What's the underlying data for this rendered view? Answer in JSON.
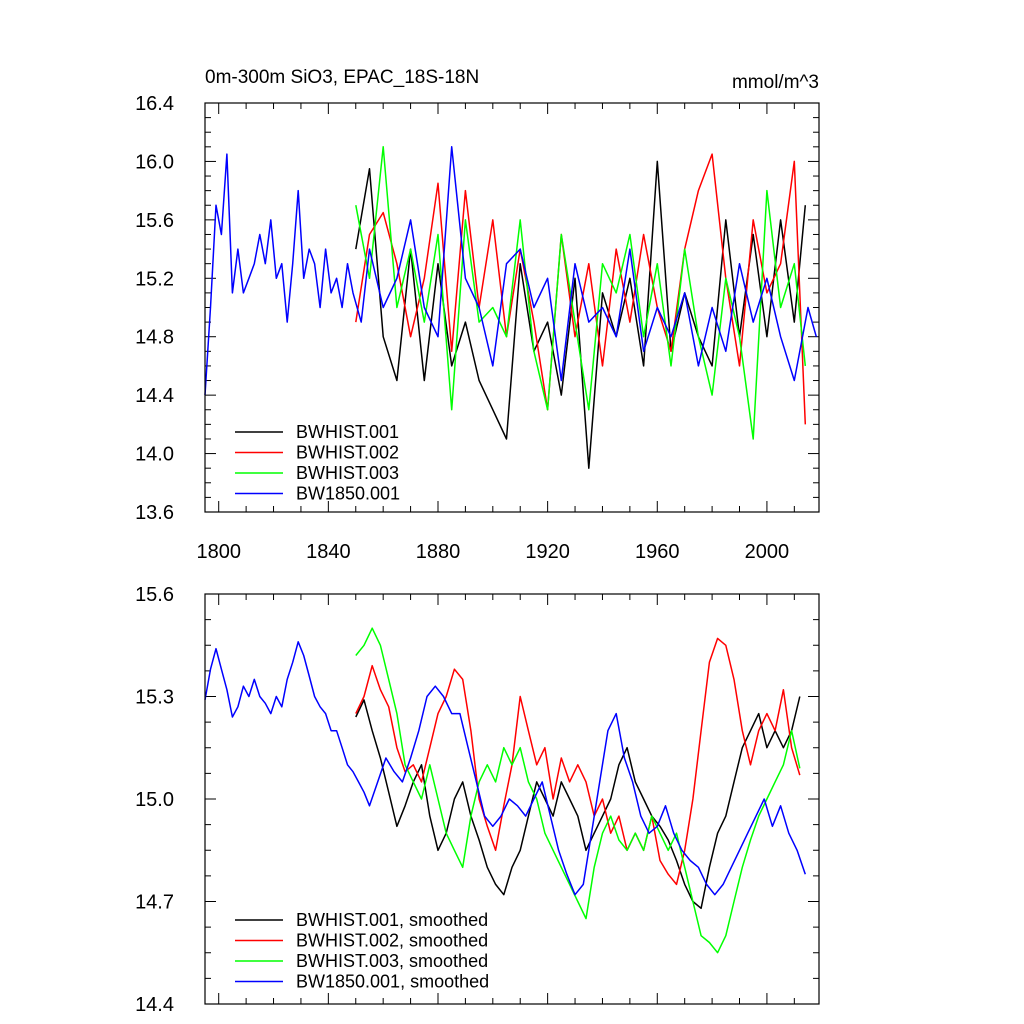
{
  "chart_data": [
    {
      "type": "line",
      "title_left": "0m-300m SiO3, EPAC_18S-18N",
      "title_right": "mmol/m^3",
      "xlabel": "",
      "ylabel": "",
      "xlim": [
        1795,
        2019
      ],
      "ylim": [
        13.6,
        16.4
      ],
      "yticks": [
        13.6,
        14.0,
        14.4,
        14.8,
        15.2,
        15.6,
        16.0,
        16.4
      ],
      "ytick_labels": [
        "13.6",
        "14.0",
        "14.4",
        "14.8",
        "15.2",
        "15.6",
        "16.0",
        "16.4"
      ],
      "xticks": [
        1800,
        1840,
        1880,
        1920,
        1960,
        2000
      ],
      "xtick_labels": [
        "1800",
        "1840",
        "1880",
        "1920",
        "1960",
        "2000"
      ],
      "legend_position": "bottom-left",
      "series": [
        {
          "name": "BWHIST.001",
          "color": "#000000",
          "x": [
            1850,
            1855,
            1860,
            1865,
            1870,
            1875,
            1880,
            1885,
            1890,
            1895,
            1900,
            1905,
            1910,
            1915,
            1920,
            1925,
            1930,
            1935,
            1940,
            1945,
            1950,
            1955,
            1960,
            1965,
            1970,
            1975,
            1980,
            1985,
            1990,
            1995,
            2000,
            2005,
            2010,
            2014
          ],
          "values": [
            15.4,
            15.95,
            14.8,
            14.5,
            15.4,
            14.5,
            15.3,
            14.6,
            14.9,
            14.5,
            14.3,
            14.1,
            15.3,
            14.7,
            14.9,
            14.4,
            15.2,
            13.9,
            15.1,
            14.8,
            15.2,
            14.6,
            16.0,
            14.7,
            15.1,
            14.8,
            14.6,
            15.6,
            14.8,
            15.5,
            14.8,
            15.6,
            14.9,
            15.7
          ]
        },
        {
          "name": "BWHIST.002",
          "color": "#ff0000",
          "x": [
            1850,
            1855,
            1860,
            1865,
            1870,
            1875,
            1880,
            1885,
            1890,
            1895,
            1900,
            1905,
            1910,
            1915,
            1920,
            1925,
            1930,
            1935,
            1940,
            1945,
            1950,
            1955,
            1960,
            1965,
            1970,
            1975,
            1980,
            1985,
            1990,
            1995,
            2000,
            2005,
            2010,
            2014
          ],
          "values": [
            14.9,
            15.5,
            15.65,
            15.3,
            14.8,
            15.2,
            15.85,
            14.7,
            15.8,
            15.0,
            15.6,
            14.8,
            15.4,
            14.9,
            14.3,
            15.5,
            14.8,
            15.3,
            14.6,
            15.4,
            14.9,
            15.5,
            15.0,
            14.7,
            15.4,
            15.8,
            16.05,
            15.2,
            14.6,
            15.6,
            15.1,
            15.3,
            16.0,
            14.2
          ]
        },
        {
          "name": "BWHIST.003",
          "color": "#00ff00",
          "x": [
            1850,
            1855,
            1860,
            1865,
            1870,
            1875,
            1880,
            1885,
            1890,
            1895,
            1900,
            1905,
            1910,
            1915,
            1920,
            1925,
            1930,
            1935,
            1940,
            1945,
            1950,
            1955,
            1960,
            1965,
            1970,
            1975,
            1980,
            1985,
            1990,
            1995,
            2000,
            2005,
            2010,
            2014
          ],
          "values": [
            15.7,
            15.2,
            16.1,
            15.0,
            15.4,
            14.9,
            15.5,
            14.3,
            15.6,
            14.9,
            15.0,
            14.8,
            15.6,
            14.7,
            14.3,
            15.5,
            14.9,
            14.3,
            15.3,
            15.1,
            15.5,
            14.8,
            15.3,
            14.6,
            15.4,
            14.8,
            14.4,
            15.2,
            14.8,
            14.1,
            15.8,
            15.0,
            15.3,
            14.6
          ]
        },
        {
          "name": "BW1850.001",
          "color": "#0000ff",
          "x": [
            1795,
            1797,
            1799,
            1801,
            1803,
            1805,
            1807,
            1809,
            1811,
            1813,
            1815,
            1817,
            1819,
            1821,
            1823,
            1825,
            1827,
            1829,
            1831,
            1833,
            1835,
            1837,
            1839,
            1841,
            1843,
            1845,
            1847,
            1849,
            1852,
            1855,
            1860,
            1865,
            1870,
            1875,
            1880,
            1885,
            1890,
            1895,
            1900,
            1905,
            1910,
            1915,
            1920,
            1925,
            1930,
            1935,
            1940,
            1945,
            1950,
            1955,
            1960,
            1965,
            1970,
            1975,
            1980,
            1985,
            1990,
            1995,
            2000,
            2005,
            2010,
            2015,
            2018
          ],
          "values": [
            14.4,
            15.0,
            15.7,
            15.5,
            16.05,
            15.1,
            15.4,
            15.1,
            15.2,
            15.3,
            15.5,
            15.3,
            15.6,
            15.2,
            15.3,
            14.9,
            15.3,
            15.8,
            15.2,
            15.4,
            15.3,
            15.0,
            15.4,
            15.1,
            15.2,
            15.0,
            15.3,
            15.1,
            14.9,
            15.4,
            15.0,
            15.2,
            15.6,
            15.0,
            14.8,
            16.1,
            15.2,
            15.0,
            14.6,
            15.3,
            15.4,
            15.0,
            15.2,
            14.5,
            15.3,
            14.9,
            15.0,
            14.8,
            15.4,
            14.7,
            15.0,
            14.8,
            15.1,
            14.6,
            15.0,
            14.7,
            15.3,
            14.9,
            15.2,
            14.8,
            14.5,
            15.0,
            14.8
          ]
        }
      ]
    },
    {
      "type": "line",
      "xlabel": "",
      "ylabel": "",
      "xlim": [
        1795,
        2019
      ],
      "ylim": [
        14.4,
        15.6
      ],
      "yticks": [
        14.4,
        14.7,
        15.0,
        15.3,
        15.6
      ],
      "ytick_labels": [
        "14.4",
        "14.7",
        "15.0",
        "15.3",
        "15.6"
      ],
      "xticks": [
        1800,
        1840,
        1880,
        1920,
        1960,
        2000
      ],
      "legend_position": "bottom-left",
      "series": [
        {
          "name": "BWHIST.001, smoothed",
          "color": "#000000",
          "x": [
            1850,
            1853,
            1856,
            1859,
            1862,
            1865,
            1868,
            1871,
            1874,
            1877,
            1880,
            1883,
            1886,
            1889,
            1892,
            1895,
            1898,
            1901,
            1904,
            1907,
            1910,
            1913,
            1916,
            1919,
            1922,
            1925,
            1928,
            1931,
            1934,
            1937,
            1940,
            1943,
            1946,
            1949,
            1952,
            1955,
            1958,
            1961,
            1964,
            1967,
            1970,
            1973,
            1976,
            1979,
            1982,
            1985,
            1988,
            1991,
            1994,
            1997,
            2000,
            2003,
            2006,
            2009,
            2012
          ],
          "values": [
            15.24,
            15.29,
            15.2,
            15.12,
            15.02,
            14.92,
            14.98,
            15.05,
            15.1,
            14.95,
            14.85,
            14.9,
            15.0,
            15.05,
            14.95,
            14.88,
            14.8,
            14.75,
            14.72,
            14.8,
            14.85,
            14.95,
            15.05,
            15.0,
            14.95,
            15.05,
            15.0,
            14.95,
            14.85,
            14.9,
            14.95,
            15.0,
            15.1,
            15.15,
            15.05,
            15.0,
            14.95,
            14.92,
            14.88,
            14.82,
            14.75,
            14.7,
            14.68,
            14.8,
            14.9,
            14.95,
            15.05,
            15.15,
            15.2,
            15.25,
            15.15,
            15.2,
            15.15,
            15.2,
            15.3
          ]
        },
        {
          "name": "BWHIST.002, smoothed",
          "color": "#ff0000",
          "x": [
            1850,
            1853,
            1856,
            1859,
            1862,
            1865,
            1868,
            1871,
            1874,
            1877,
            1880,
            1883,
            1886,
            1889,
            1892,
            1895,
            1898,
            1901,
            1904,
            1907,
            1910,
            1913,
            1916,
            1919,
            1922,
            1925,
            1928,
            1931,
            1934,
            1937,
            1940,
            1943,
            1946,
            1949,
            1952,
            1955,
            1958,
            1961,
            1964,
            1967,
            1970,
            1973,
            1976,
            1979,
            1982,
            1985,
            1988,
            1991,
            1994,
            1997,
            2000,
            2003,
            2006,
            2009,
            2012
          ],
          "values": [
            15.25,
            15.3,
            15.39,
            15.32,
            15.27,
            15.15,
            15.08,
            15.1,
            15.05,
            15.15,
            15.25,
            15.3,
            15.38,
            15.35,
            15.2,
            15.0,
            14.92,
            14.85,
            14.98,
            15.1,
            15.3,
            15.2,
            15.1,
            15.15,
            15.0,
            15.12,
            15.05,
            15.1,
            15.05,
            14.95,
            15.0,
            14.9,
            14.95,
            14.85,
            14.9,
            14.85,
            14.95,
            14.82,
            14.78,
            14.75,
            14.85,
            15.0,
            15.2,
            15.4,
            15.47,
            15.45,
            15.35,
            15.2,
            15.1,
            15.2,
            15.25,
            15.2,
            15.32,
            15.15,
            15.07
          ]
        },
        {
          "name": "BWHIST.003, smoothed",
          "color": "#00ff00",
          "x": [
            1850,
            1853,
            1856,
            1859,
            1862,
            1865,
            1868,
            1871,
            1874,
            1877,
            1880,
            1883,
            1886,
            1889,
            1892,
            1895,
            1898,
            1901,
            1904,
            1907,
            1910,
            1913,
            1916,
            1919,
            1922,
            1925,
            1928,
            1931,
            1934,
            1937,
            1940,
            1943,
            1946,
            1949,
            1952,
            1955,
            1958,
            1961,
            1964,
            1967,
            1970,
            1973,
            1976,
            1979,
            1982,
            1985,
            1988,
            1991,
            1994,
            1997,
            2000,
            2003,
            2006,
            2009,
            2012
          ],
          "values": [
            15.42,
            15.45,
            15.5,
            15.45,
            15.35,
            15.25,
            15.1,
            15.05,
            15.0,
            15.1,
            15.0,
            14.9,
            14.85,
            14.8,
            14.95,
            15.05,
            15.1,
            15.05,
            15.15,
            15.1,
            15.15,
            15.05,
            15.0,
            14.9,
            14.85,
            14.8,
            14.75,
            14.7,
            14.65,
            14.8,
            14.9,
            14.95,
            14.88,
            14.85,
            14.9,
            14.85,
            14.95,
            14.9,
            14.85,
            14.9,
            14.8,
            14.7,
            14.6,
            14.58,
            14.55,
            14.6,
            14.7,
            14.8,
            14.88,
            14.95,
            15.0,
            15.05,
            15.1,
            15.2,
            15.09
          ]
        },
        {
          "name": "BW1850.001, smoothed",
          "color": "#0000ff",
          "x": [
            1795,
            1797,
            1799,
            1801,
            1803,
            1805,
            1807,
            1809,
            1811,
            1813,
            1815,
            1817,
            1819,
            1821,
            1823,
            1825,
            1827,
            1829,
            1831,
            1833,
            1835,
            1837,
            1839,
            1841,
            1843,
            1845,
            1847,
            1849,
            1851,
            1853,
            1855,
            1858,
            1861,
            1864,
            1867,
            1870,
            1873,
            1876,
            1879,
            1882,
            1885,
            1888,
            1891,
            1894,
            1897,
            1900,
            1903,
            1906,
            1909,
            1912,
            1915,
            1918,
            1921,
            1924,
            1927,
            1930,
            1933,
            1936,
            1939,
            1942,
            1945,
            1948,
            1951,
            1954,
            1957,
            1960,
            1963,
            1966,
            1969,
            1972,
            1975,
            1978,
            1981,
            1984,
            1987,
            1990,
            1993,
            1996,
            1999,
            2002,
            2005,
            2008,
            2011,
            2014
          ],
          "values": [
            15.29,
            15.38,
            15.44,
            15.38,
            15.32,
            15.24,
            15.27,
            15.33,
            15.3,
            15.35,
            15.3,
            15.28,
            15.25,
            15.3,
            15.27,
            15.35,
            15.4,
            15.46,
            15.42,
            15.36,
            15.3,
            15.27,
            15.25,
            15.2,
            15.2,
            15.15,
            15.1,
            15.08,
            15.05,
            15.02,
            14.98,
            15.05,
            15.12,
            15.08,
            15.05,
            15.12,
            15.2,
            15.3,
            15.33,
            15.3,
            15.25,
            15.25,
            15.15,
            15.05,
            14.95,
            14.92,
            14.95,
            15.0,
            14.98,
            14.95,
            15.0,
            15.05,
            14.95,
            14.85,
            14.78,
            14.72,
            14.75,
            14.9,
            15.05,
            15.2,
            15.25,
            15.12,
            15.05,
            14.95,
            14.9,
            14.92,
            14.98,
            14.9,
            14.85,
            14.82,
            14.8,
            14.75,
            14.72,
            14.75,
            14.8,
            14.85,
            14.9,
            14.95,
            15.0,
            14.92,
            14.98,
            14.9,
            14.85,
            14.78
          ]
        }
      ]
    }
  ]
}
